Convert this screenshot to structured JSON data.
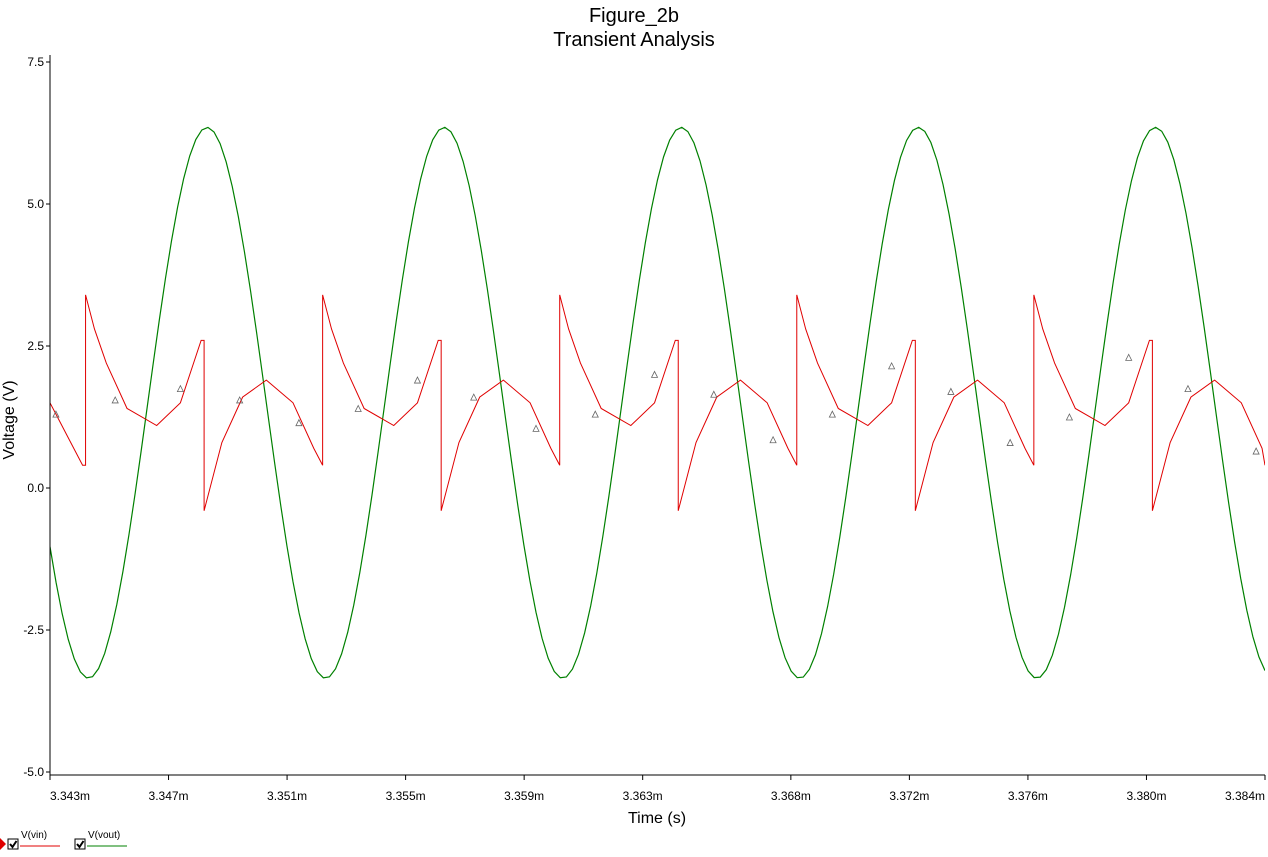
{
  "chart_data": {
    "type": "line",
    "title": "Figure_2b",
    "subtitle": "Transient Analysis",
    "xlabel": "Time (s)",
    "ylabel": "Voltage (V)",
    "x_unit": "s",
    "xlim": [
      0.003343,
      0.003384
    ],
    "ylim": [
      -5.0,
      7.5
    ],
    "x_tick_values": [
      0.003343,
      0.003347,
      0.003351,
      0.003355,
      0.003359,
      0.003363,
      0.003368,
      0.003372,
      0.003376,
      0.00338,
      0.003384
    ],
    "x_tick_labels": [
      "3.343m",
      "3.347m",
      "3.351m",
      "3.355m",
      "3.359m",
      "3.363m",
      "3.368m",
      "3.372m",
      "3.376m",
      "3.380m",
      "3.384m"
    ],
    "y_tick_values": [
      7.5,
      5.0,
      2.5,
      0.0,
      -2.5,
      -5.0
    ],
    "y_tick_labels": [
      "7.5",
      "5.0",
      "2.5",
      "0.0",
      "-2.5",
      "-5.0"
    ],
    "grid": false,
    "legend_position": "bottom-left",
    "series": [
      {
        "name": "V(vin)",
        "color": "#e00000",
        "marker": "triangle",
        "x": [
          0.003343,
          0.0033432,
          0.0033436,
          0.0033441,
          0.0033442,
          0.0033442,
          0.0033445,
          0.0033449,
          0.0033456,
          0.0033466,
          0.0033474,
          0.0033481,
          0.0033482,
          0.0033482,
          0.0033488,
          0.0033495,
          0.0033503,
          0.0033512,
          0.0033519,
          0.0033522,
          0.0033522,
          0.0033525,
          0.0033529,
          0.0033536,
          0.0033546,
          0.0033554,
          0.0033561,
          0.0033562,
          0.0033562,
          0.0033568,
          0.0033575,
          0.0033583,
          0.0033592,
          0.0033599,
          0.0033602,
          0.0033602,
          0.0033605,
          0.0033609,
          0.0033616,
          0.0033626,
          0.0033634,
          0.0033641,
          0.0033642,
          0.0033642,
          0.0033648,
          0.0033655,
          0.0033663,
          0.0033672,
          0.0033679,
          0.0033682,
          0.0033682,
          0.0033685,
          0.0033689,
          0.0033696,
          0.0033706,
          0.0033714,
          0.0033721,
          0.0033722,
          0.0033722,
          0.0033728,
          0.0033735,
          0.0033743,
          0.0033752,
          0.0033759,
          0.0033762,
          0.0033762,
          0.0033765,
          0.0033769,
          0.0033776,
          0.0033786,
          0.0033794,
          0.0033801,
          0.0033802,
          0.0033802,
          0.0033808,
          0.0033815,
          0.0033823,
          0.0033832,
          0.0033839,
          0.003384
        ],
        "y": [
          1.5,
          1.3,
          0.9,
          0.4,
          0.4,
          3.4,
          2.8,
          2.2,
          1.4,
          1.1,
          1.5,
          2.6,
          2.6,
          -0.4,
          0.8,
          1.6,
          1.9,
          1.5,
          0.7,
          0.4,
          3.4,
          2.8,
          2.2,
          1.4,
          1.1,
          1.5,
          2.6,
          2.6,
          -0.4,
          0.8,
          1.6,
          1.9,
          1.5,
          0.7,
          0.4,
          3.4,
          2.8,
          2.2,
          1.4,
          1.1,
          1.5,
          2.6,
          2.6,
          -0.4,
          0.8,
          1.6,
          1.9,
          1.5,
          0.7,
          0.4,
          3.4,
          2.8,
          2.2,
          1.4,
          1.1,
          1.5,
          2.6,
          2.6,
          -0.4,
          0.8,
          1.6,
          1.9,
          1.5,
          0.7,
          0.4,
          3.4,
          2.8,
          2.2,
          1.4,
          1.1,
          1.5,
          2.6,
          2.6,
          -0.4,
          0.8,
          1.6,
          1.9,
          1.5,
          0.7,
          0.4
        ],
        "markers_x": [
          0.0033432,
          0.0033452,
          0.0033474,
          0.0033494,
          0.0033514,
          0.0033534,
          0.0033554,
          0.0033573,
          0.0033594,
          0.0033614,
          0.0033634,
          0.0033654,
          0.0033674,
          0.0033694,
          0.0033714,
          0.0033734,
          0.0033754,
          0.0033774,
          0.0033794,
          0.0033814,
          0.0033837
        ],
        "markers_y": [
          1.3,
          1.55,
          1.75,
          1.55,
          1.15,
          1.4,
          1.9,
          1.6,
          1.05,
          1.3,
          2.0,
          1.65,
          0.85,
          1.3,
          2.15,
          1.7,
          0.8,
          1.25,
          2.3,
          1.75,
          0.65
        ]
      },
      {
        "name": "V(vout)",
        "color": "#008000",
        "marker": "none",
        "waveform": "sine",
        "offset": 1.5,
        "amplitude": 4.85,
        "period": 8e-06,
        "peak_time": 0.0033483,
        "x_start": 0.003343,
        "x_end": 0.003384
      }
    ],
    "legend": [
      {
        "label": "V(vin)",
        "checked": true,
        "color": "#e00000"
      },
      {
        "label": "V(vout)",
        "checked": true,
        "color": "#008000"
      }
    ]
  }
}
